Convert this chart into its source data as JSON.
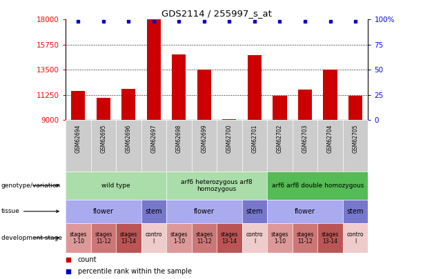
{
  "title": "GDS2114 / 255997_s_at",
  "samples": [
    "GSM62694",
    "GSM62695",
    "GSM62696",
    "GSM62697",
    "GSM62698",
    "GSM62699",
    "GSM62700",
    "GSM62701",
    "GSM62702",
    "GSM62703",
    "GSM62704",
    "GSM62705"
  ],
  "counts": [
    11600,
    11000,
    11800,
    18000,
    14900,
    13500,
    9050,
    14800,
    11200,
    11700,
    13500,
    11200
  ],
  "ylim": [
    9000,
    18000
  ],
  "yticks_left": [
    9000,
    11250,
    13500,
    15750,
    18000
  ],
  "yticks_right": [
    0,
    25,
    50,
    75,
    100
  ],
  "bar_color": "#cc0000",
  "percentile_color": "#0000cc",
  "gsm_bg_color": "#cccccc",
  "genotype_groups": [
    {
      "label": "wild type",
      "start": 0,
      "end": 3,
      "color": "#aaddaa"
    },
    {
      "label": "arf6 heterozygous arf8\nhomozygous",
      "start": 4,
      "end": 7,
      "color": "#aaddaa"
    },
    {
      "label": "arf6 arf8 double homozygous",
      "start": 8,
      "end": 11,
      "color": "#55bb55"
    }
  ],
  "tissue_groups": [
    {
      "label": "flower",
      "start": 0,
      "end": 2,
      "color": "#aaaaee"
    },
    {
      "label": "stem",
      "start": 3,
      "end": 3,
      "color": "#7777cc"
    },
    {
      "label": "flower",
      "start": 4,
      "end": 6,
      "color": "#aaaaee"
    },
    {
      "label": "stem",
      "start": 7,
      "end": 7,
      "color": "#7777cc"
    },
    {
      "label": "flower",
      "start": 8,
      "end": 10,
      "color": "#aaaaee"
    },
    {
      "label": "stem",
      "start": 11,
      "end": 11,
      "color": "#7777cc"
    }
  ],
  "stage_groups": [
    {
      "label": "stages\n1-10",
      "start": 0,
      "end": 0,
      "color": "#dd9999"
    },
    {
      "label": "stages\n11-12",
      "start": 1,
      "end": 1,
      "color": "#cc7777"
    },
    {
      "label": "stages\n13-14",
      "start": 2,
      "end": 2,
      "color": "#bb5555"
    },
    {
      "label": "contro\nl",
      "start": 3,
      "end": 3,
      "color": "#eecccc"
    },
    {
      "label": "stages\n1-10",
      "start": 4,
      "end": 4,
      "color": "#dd9999"
    },
    {
      "label": "stages\n11-12",
      "start": 5,
      "end": 5,
      "color": "#cc7777"
    },
    {
      "label": "stages\n13-14",
      "start": 6,
      "end": 6,
      "color": "#bb5555"
    },
    {
      "label": "contro\nl",
      "start": 7,
      "end": 7,
      "color": "#eecccc"
    },
    {
      "label": "stages\n1-10",
      "start": 8,
      "end": 8,
      "color": "#dd9999"
    },
    {
      "label": "stages\n11-12",
      "start": 9,
      "end": 9,
      "color": "#cc7777"
    },
    {
      "label": "stages\n13-14",
      "start": 10,
      "end": 10,
      "color": "#bb5555"
    },
    {
      "label": "contro\nl",
      "start": 11,
      "end": 11,
      "color": "#eecccc"
    }
  ],
  "row_labels": [
    "genotype/variation",
    "tissue",
    "development stage"
  ],
  "legend_count_color": "#cc0000",
  "legend_pct_color": "#0000cc"
}
